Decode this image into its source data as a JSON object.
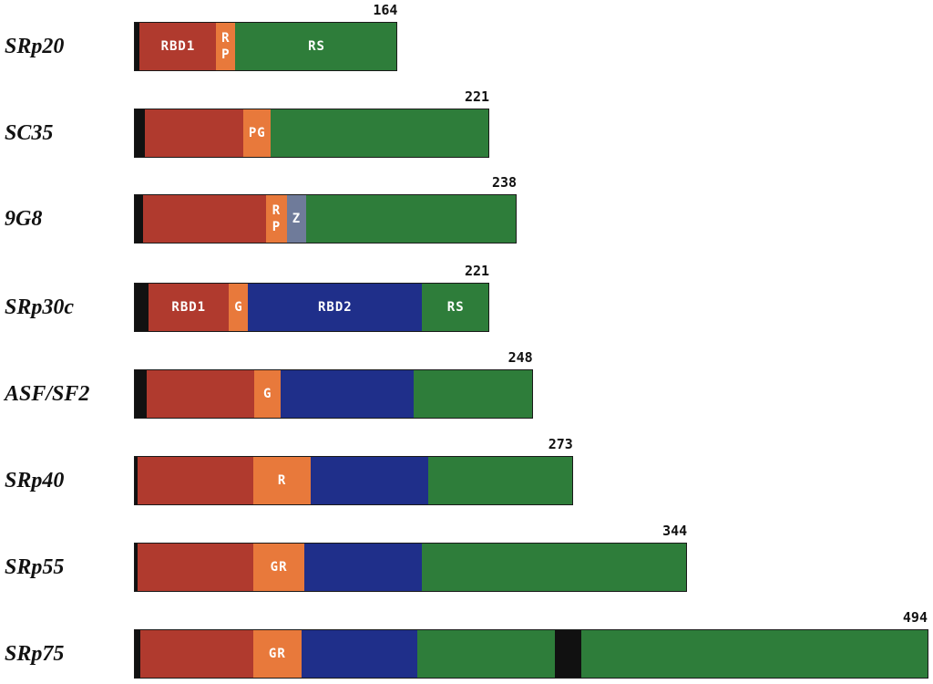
{
  "colors": {
    "n_terminal": "#111111",
    "rbd1": "#b03a2e",
    "linker": "#e8793b",
    "z": "#6f7b9a",
    "rbd2": "#1f2f8a",
    "rs": "#2e7d3a"
  },
  "proteins": [
    {
      "name": "SRp20",
      "length": "164",
      "segments": [
        {
          "type": "n_terminal",
          "label": "",
          "start": 0,
          "end": 3.6
        },
        {
          "type": "rbd1",
          "label": "RBD1",
          "start": 3.6,
          "end": 51
        },
        {
          "type": "linker",
          "label": "R\nP",
          "start": 51,
          "end": 63
        },
        {
          "type": "rs",
          "label": "RS",
          "start": 63,
          "end": 164
        }
      ]
    },
    {
      "name": "SC35",
      "length": "221",
      "segments": [
        {
          "type": "n_terminal",
          "label": "",
          "start": 0,
          "end": 7
        },
        {
          "type": "rbd1",
          "label": "",
          "start": 7,
          "end": 68
        },
        {
          "type": "linker",
          "label": "PG",
          "start": 68,
          "end": 85
        },
        {
          "type": "rs",
          "label": "",
          "start": 85,
          "end": 221
        }
      ]
    },
    {
      "name": "9G8",
      "length": "238",
      "segments": [
        {
          "type": "n_terminal",
          "label": "",
          "start": 0,
          "end": 5.5
        },
        {
          "type": "rbd1",
          "label": "",
          "start": 5.5,
          "end": 82
        },
        {
          "type": "linker",
          "label": "R\nP",
          "start": 82,
          "end": 95
        },
        {
          "type": "z",
          "label": "Z",
          "start": 95,
          "end": 107
        },
        {
          "type": "rs",
          "label": "",
          "start": 107,
          "end": 238
        }
      ]
    },
    {
      "name": "SRp30c",
      "length": "221",
      "segments": [
        {
          "type": "n_terminal",
          "label": "",
          "start": 0,
          "end": 9
        },
        {
          "type": "rbd1",
          "label": "RBD1",
          "start": 9,
          "end": 59
        },
        {
          "type": "linker",
          "label": "G",
          "start": 59,
          "end": 71
        },
        {
          "type": "rbd2",
          "label": "RBD2",
          "start": 71,
          "end": 179
        },
        {
          "type": "rs",
          "label": "RS",
          "start": 179,
          "end": 221
        }
      ]
    },
    {
      "name": "ASF/SF2",
      "length": "248",
      "segments": [
        {
          "type": "n_terminal",
          "label": "",
          "start": 0,
          "end": 8
        },
        {
          "type": "rbd1",
          "label": "",
          "start": 8,
          "end": 75
        },
        {
          "type": "linker",
          "label": "G",
          "start": 75,
          "end": 91
        },
        {
          "type": "rbd2",
          "label": "",
          "start": 91,
          "end": 174
        },
        {
          "type": "rs",
          "label": "",
          "start": 174,
          "end": 248
        }
      ]
    },
    {
      "name": "SRp40",
      "length": "273",
      "segments": [
        {
          "type": "n_terminal",
          "label": "",
          "start": 0,
          "end": 2.3
        },
        {
          "type": "rbd1",
          "label": "",
          "start": 2.3,
          "end": 74
        },
        {
          "type": "linker",
          "label": "R",
          "start": 74,
          "end": 110
        },
        {
          "type": "rbd2",
          "label": "",
          "start": 110,
          "end": 183
        },
        {
          "type": "rs",
          "label": "",
          "start": 183,
          "end": 273
        }
      ]
    },
    {
      "name": "SRp55",
      "length": "344",
      "segments": [
        {
          "type": "n_terminal",
          "label": "",
          "start": 0,
          "end": 2.5
        },
        {
          "type": "rbd1",
          "label": "",
          "start": 2.5,
          "end": 74
        },
        {
          "type": "linker",
          "label": "GR",
          "start": 74,
          "end": 106
        },
        {
          "type": "rbd2",
          "label": "",
          "start": 106,
          "end": 179
        },
        {
          "type": "rs",
          "label": "",
          "start": 179,
          "end": 344
        }
      ]
    },
    {
      "name": "SRp75",
      "length": "494",
      "segments": [
        {
          "type": "n_terminal",
          "label": "",
          "start": 0,
          "end": 4
        },
        {
          "type": "rbd1",
          "label": "",
          "start": 4,
          "end": 74
        },
        {
          "type": "linker",
          "label": "GR",
          "start": 74,
          "end": 104
        },
        {
          "type": "rbd2",
          "label": "",
          "start": 104,
          "end": 176
        },
        {
          "type": "rs",
          "label": "",
          "start": 176,
          "end": 262
        },
        {
          "type": "n_terminal",
          "label": "",
          "start": 262,
          "end": 278
        },
        {
          "type": "rs",
          "label": "",
          "start": 278,
          "end": 494
        }
      ]
    }
  ]
}
